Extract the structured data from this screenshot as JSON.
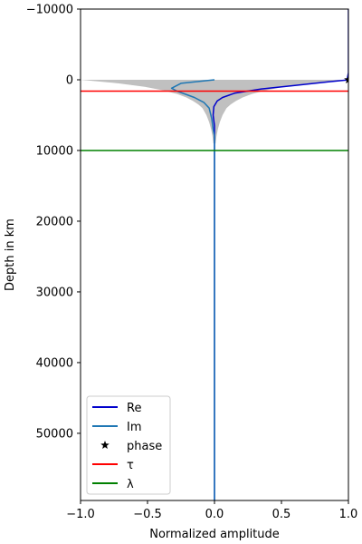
{
  "chart_data": {
    "type": "line",
    "title": "",
    "xlabel": "Normalized amplitude",
    "ylabel": "Depth in km",
    "xlim": [
      -1.0,
      1.0
    ],
    "ylim": [
      59500,
      -10000
    ],
    "y_inverted": true,
    "grid": false,
    "legend_position": "lower-left",
    "x_ticks": [
      -1.0,
      -0.5,
      0.0,
      0.5,
      1.0
    ],
    "x_tick_labels": [
      "−1.0",
      "−0.5",
      "0.0",
      "0.5",
      "1.0"
    ],
    "y_ticks": [
      -10000,
      0,
      10000,
      20000,
      30000,
      40000,
      50000
    ],
    "y_tick_labels": [
      "−10000",
      "0",
      "10000",
      "20000",
      "30000",
      "40000",
      "50000"
    ],
    "envelope": {
      "color": "#c0c0c0",
      "depth": [
        0,
        500,
        1000,
        1500,
        2000,
        2500,
        3000,
        3500,
        4000,
        5000,
        6000,
        7000,
        8000,
        9000
      ],
      "half_width": [
        1.0,
        0.72,
        0.52,
        0.38,
        0.28,
        0.21,
        0.16,
        0.12,
        0.09,
        0.06,
        0.04,
        0.025,
        0.015,
        0.008
      ]
    },
    "series": [
      {
        "name": "Re",
        "color": "#0000cc",
        "x": [
          1.0,
          1.0,
          0.99,
          0.98,
          0.85,
          0.6,
          0.35,
          0.15,
          0.06,
          0.02,
          -0.005,
          -0.01,
          0.0,
          0.0,
          0.0
        ],
        "y": [
          -10000,
          -1000,
          0,
          50,
          300,
          800,
          1300,
          1900,
          2500,
          3000,
          3800,
          5000,
          6500,
          8000,
          59500
        ]
      },
      {
        "name": "Im",
        "color": "#1f77b4",
        "x": [
          0.0,
          -0.25,
          -0.32,
          -0.28,
          -0.15,
          -0.08,
          -0.04,
          -0.02,
          -0.01,
          0.0,
          0.0
        ],
        "y": [
          0,
          500,
          1200,
          1600,
          2500,
          3200,
          4000,
          5500,
          7000,
          8000,
          59500
        ]
      },
      {
        "name": "phase",
        "color": "#000000",
        "marker": "star",
        "x": [
          1.0
        ],
        "y": [
          0
        ]
      },
      {
        "name": "τ",
        "color": "#ff0000",
        "type": "hline",
        "y": 1600
      },
      {
        "name": "λ",
        "color": "#008000",
        "type": "hline",
        "y": 10000
      }
    ]
  }
}
